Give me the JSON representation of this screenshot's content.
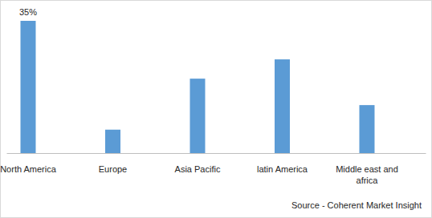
{
  "chart_data": {
    "type": "bar",
    "categories": [
      "North America",
      "Europe",
      "Asia Pacific",
      "latin America",
      "Middle east and africa"
    ],
    "values": [
      35,
      6.2,
      19.7,
      24.8,
      12.7
    ],
    "value_labels": [
      "35%",
      null,
      null,
      null,
      null
    ],
    "data_labels": true,
    "color": "#5b9bd5",
    "tick_labels": "x",
    "grid": false,
    "source": "Source - Coherent Market Insight"
  }
}
